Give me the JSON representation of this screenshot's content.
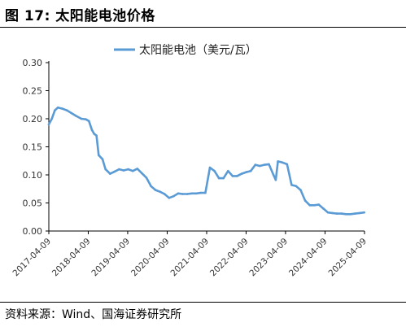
{
  "figure": {
    "title": "图 17:  太阳能电池价格",
    "source": "资料来源：Wind、国海证券研究所"
  },
  "chart_data": {
    "type": "line",
    "title": "",
    "xlabel": "",
    "ylabel": "",
    "ylim": [
      0,
      0.3
    ],
    "yticks": [
      "0.00",
      "0.05",
      "0.10",
      "0.15",
      "0.20",
      "0.25",
      "0.30"
    ],
    "xticks": [
      "2017-04-09",
      "2018-04-09",
      "2019-04-09",
      "2020-04-09",
      "2021-04-09",
      "2022-04-09",
      "2023-04-09",
      "2024-04-09",
      "2025-04-09"
    ],
    "grid": false,
    "legend_position": "top",
    "series": [
      {
        "name": "太阳能电池（美元/瓦）",
        "color": "#5b9bd5",
        "x": [
          "2017-04-09",
          "2017-05-07",
          "2017-06-04",
          "2017-07-02",
          "2017-08-13",
          "2017-09-24",
          "2017-11-05",
          "2017-12-17",
          "2018-02-04",
          "2018-03-18",
          "2018-04-15",
          "2018-05-13",
          "2018-06-03",
          "2018-06-24",
          "2018-07-15",
          "2018-08-19",
          "2018-09-16",
          "2018-10-28",
          "2018-12-09",
          "2019-01-20",
          "2019-03-03",
          "2019-04-14",
          "2019-05-26",
          "2019-07-07",
          "2019-08-18",
          "2019-09-29",
          "2019-11-10",
          "2019-12-22",
          "2020-02-02",
          "2020-03-15",
          "2020-04-26",
          "2020-06-07",
          "2020-07-19",
          "2020-08-30",
          "2020-10-11",
          "2020-11-22",
          "2021-01-03",
          "2021-02-14",
          "2021-03-28",
          "2021-05-09",
          "2021-06-20",
          "2021-08-01",
          "2021-09-12",
          "2021-10-24",
          "2021-12-05",
          "2022-01-16",
          "2022-02-27",
          "2022-04-10",
          "2022-05-22",
          "2022-07-03",
          "2022-08-14",
          "2022-09-25",
          "2022-11-06",
          "2022-12-18",
          "2023-01-08",
          "2023-01-29",
          "2023-03-12",
          "2023-04-23",
          "2023-06-04",
          "2023-07-16",
          "2023-08-27",
          "2023-10-08",
          "2023-11-19",
          "2023-12-31",
          "2024-02-11",
          "2024-03-24",
          "2024-05-05",
          "2024-06-16",
          "2024-07-28",
          "2024-09-08",
          "2024-10-20",
          "2024-12-01",
          "2025-01-12",
          "2025-02-23",
          "2025-04-06"
        ],
        "values": [
          0.19,
          0.2,
          0.215,
          0.22,
          0.218,
          0.215,
          0.21,
          0.205,
          0.2,
          0.199,
          0.196,
          0.18,
          0.173,
          0.17,
          0.135,
          0.128,
          0.11,
          0.102,
          0.106,
          0.11,
          0.108,
          0.11,
          0.107,
          0.111,
          0.103,
          0.095,
          0.08,
          0.073,
          0.07,
          0.066,
          0.059,
          0.062,
          0.067,
          0.066,
          0.066,
          0.067,
          0.067,
          0.068,
          0.068,
          0.113,
          0.107,
          0.094,
          0.094,
          0.107,
          0.098,
          0.098,
          0.102,
          0.105,
          0.107,
          0.118,
          0.116,
          0.118,
          0.119,
          0.1,
          0.091,
          0.124,
          0.122,
          0.119,
          0.082,
          0.08,
          0.073,
          0.054,
          0.046,
          0.046,
          0.047,
          0.04,
          0.033,
          0.032,
          0.031,
          0.031,
          0.03,
          0.03,
          0.031,
          0.032,
          0.033
        ]
      }
    ]
  }
}
